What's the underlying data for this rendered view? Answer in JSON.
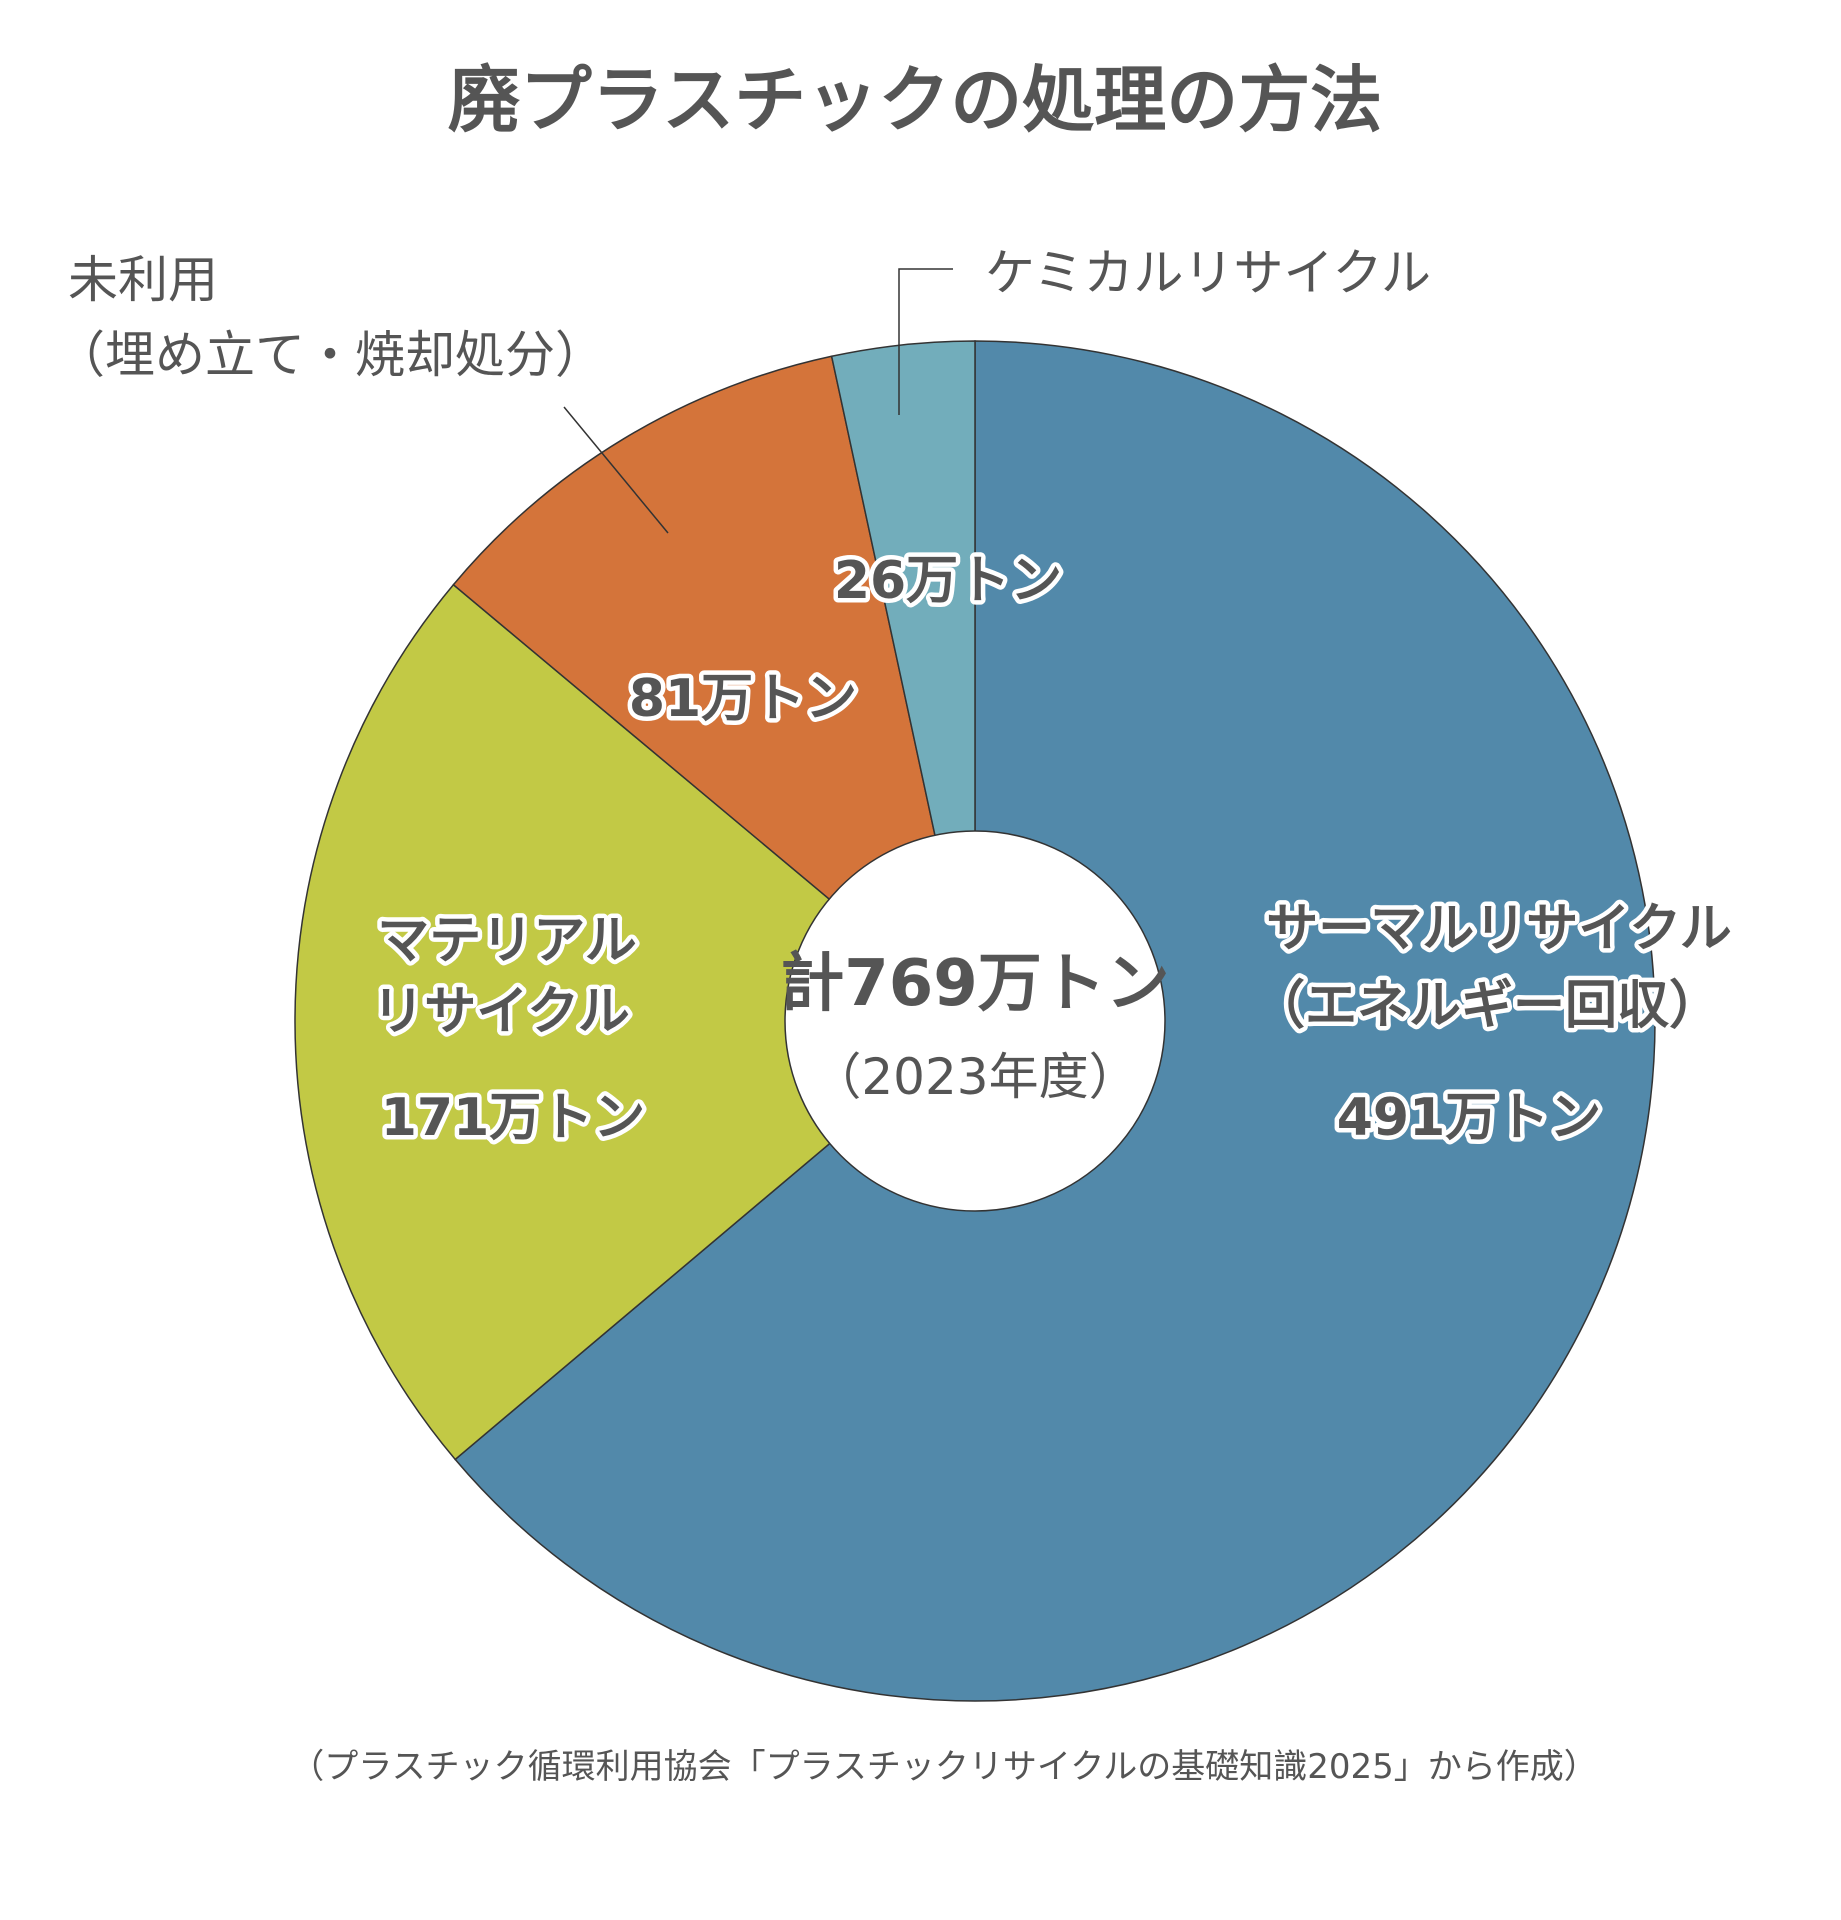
{
  "chart_data": {
    "type": "pie",
    "title": "廃プラスチックの処理の方法",
    "unit": "万トン",
    "total_label": "計769万トン",
    "total_sub": "（2023年度）",
    "slices": [
      {
        "name": "サーマルリサイクル",
        "name2": "（エネルギー回収）",
        "value": 491,
        "value_label": "491万トン",
        "color": "#5289aa"
      },
      {
        "name": "マテリアル",
        "name2": "リサイクル",
        "value": 171,
        "value_label": "171万トン",
        "color": "#c2c945"
      },
      {
        "name": "未利用",
        "name2": "（埋め立て・焼却処分）",
        "value": 81,
        "value_label": "81万トン",
        "color": "#d4743a"
      },
      {
        "name": "ケミカルリサイクル",
        "value": 26,
        "value_label": "26万トン",
        "color": "#72adbb"
      }
    ],
    "source": "（プラスチック循環利用協会「プラスチックリサイクルの基礎知識2025」から作成）"
  }
}
